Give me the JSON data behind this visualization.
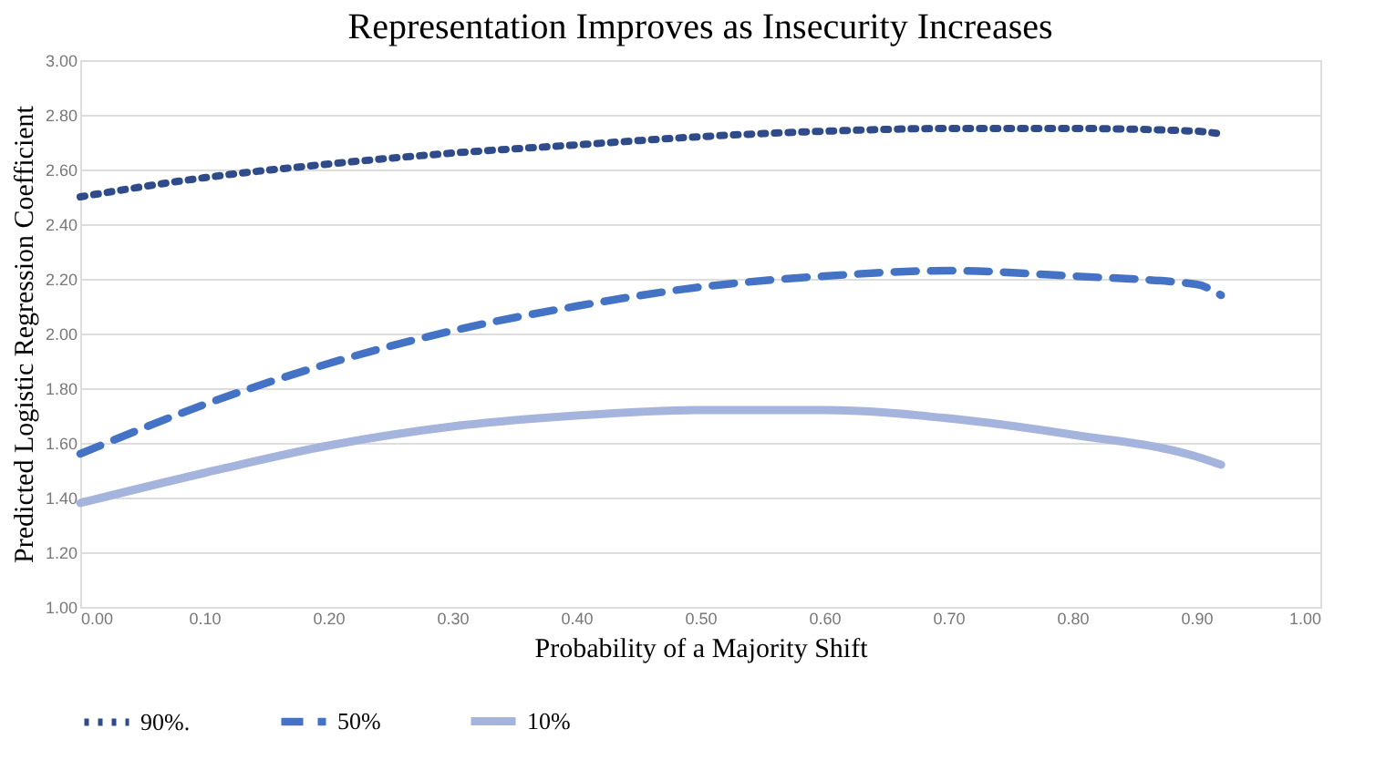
{
  "chart_data": {
    "type": "line",
    "title": "Representation Improves as Insecurity Increases",
    "xlabel": "Probability of a Majority Shift",
    "ylabel": "Predicted Logistic Regression Coefficient",
    "x": [
      0,
      0.1,
      0.2,
      0.3,
      0.4,
      0.5,
      0.6,
      0.7,
      0.8,
      0.9,
      0.92
    ],
    "series": [
      {
        "name": "90%.",
        "color": "#2f4b8a",
        "line_style": "dotted",
        "values": [
          2.5,
          2.57,
          2.62,
          2.66,
          2.69,
          2.72,
          2.74,
          2.75,
          2.75,
          2.74,
          2.73
        ]
      },
      {
        "name": "50%",
        "color": "#4472c4",
        "line_style": "dashed",
        "values": [
          1.56,
          1.74,
          1.89,
          2.01,
          2.1,
          2.17,
          2.21,
          2.23,
          2.21,
          2.18,
          2.14
        ]
      },
      {
        "name": "10%",
        "color": "#a5b4dc",
        "line_style": "solid",
        "values": [
          1.38,
          1.49,
          1.59,
          1.66,
          1.7,
          1.72,
          1.72,
          1.69,
          1.63,
          1.55,
          1.52
        ]
      }
    ],
    "xlim": [
      0,
      1
    ],
    "ylim": [
      1,
      3
    ],
    "xticks": [
      {
        "value": 0,
        "label": "0.00"
      },
      {
        "value": 0.1,
        "label": "0.10"
      },
      {
        "value": 0.2,
        "label": "0.20"
      },
      {
        "value": 0.3,
        "label": "0.30"
      },
      {
        "value": 0.4,
        "label": "0.40"
      },
      {
        "value": 0.5,
        "label": "0.50"
      },
      {
        "value": 0.6,
        "label": "0.60"
      },
      {
        "value": 0.7,
        "label": "0.70"
      },
      {
        "value": 0.8,
        "label": "0.80"
      },
      {
        "value": 0.9,
        "label": "0.90"
      },
      {
        "value": 1,
        "label": "1.00"
      }
    ],
    "yticks": [
      {
        "value": 1,
        "label": "1.00"
      },
      {
        "value": 1.2,
        "label": "1.20"
      },
      {
        "value": 1.4,
        "label": "1.40"
      },
      {
        "value": 1.6,
        "label": "1.60"
      },
      {
        "value": 1.8,
        "label": "1.80"
      },
      {
        "value": 2,
        "label": "2.00"
      },
      {
        "value": 2.2,
        "label": "2.20"
      },
      {
        "value": 2.4,
        "label": "2.40"
      },
      {
        "value": 2.6,
        "label": "2.60"
      },
      {
        "value": 2.8,
        "label": "2.80"
      },
      {
        "value": 3,
        "label": "3.00"
      }
    ],
    "grid": "y",
    "legend": "bottom",
    "marker": "none"
  }
}
